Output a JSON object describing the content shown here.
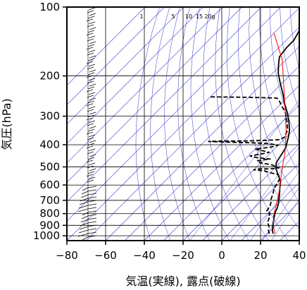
{
  "chart_data": {
    "type": "line",
    "title": "",
    "xlabel": "気温(実線), 露点(破線)",
    "ylabel": "気圧(hPa)",
    "scale": {
      "x": "linear",
      "y": "log"
    },
    "xlim": [
      -80,
      40
    ],
    "ylim": [
      1050,
      100
    ],
    "x_ticks": [
      "−80",
      "−60",
      "−40",
      "−20",
      "0",
      "20",
      "40"
    ],
    "x_tick_values": [
      -80,
      -60,
      -40,
      -20,
      0,
      20,
      40
    ],
    "y_ticks": [
      "100",
      "200",
      "300",
      "400",
      "500",
      "600",
      "700",
      "800",
      "900",
      "1000"
    ],
    "y_tick_values": [
      100,
      200,
      300,
      400,
      500,
      600,
      700,
      800,
      900,
      1000
    ],
    "mixing_ratio_labels": [
      "1",
      "5",
      "10",
      "15",
      "20g"
    ],
    "grid": true,
    "colors": {
      "temperature": "#000000",
      "dewpoint": "#000000",
      "parcel": "#ff0000",
      "background_lines": "#3333cc"
    },
    "series": [
      {
        "kind": "temperature",
        "style": "solid",
        "points": [
          [
            23,
            980
          ],
          [
            21,
            950
          ],
          [
            19,
            910
          ],
          [
            17,
            870
          ],
          [
            15,
            830
          ],
          [
            13,
            790
          ],
          [
            12,
            760
          ],
          [
            10,
            720
          ],
          [
            8,
            690
          ],
          [
            6,
            660
          ],
          [
            3,
            620
          ],
          [
            0,
            580
          ],
          [
            -5,
            540
          ],
          [
            -9,
            510
          ],
          [
            -12,
            480
          ],
          [
            -13,
            455
          ],
          [
            -14,
            430
          ],
          [
            -15,
            410
          ],
          [
            -17,
            390
          ],
          [
            -19,
            370
          ],
          [
            -22,
            345
          ],
          [
            -27,
            315
          ],
          [
            -32,
            290
          ],
          [
            -38,
            265
          ],
          [
            -44,
            240
          ],
          [
            -51,
            215
          ],
          [
            -57,
            195
          ],
          [
            -61,
            180
          ],
          [
            -65,
            165
          ],
          [
            -66,
            150
          ],
          [
            -66,
            140
          ],
          [
            -68,
            128
          ],
          [
            -70,
            120
          ],
          [
            -71,
            113
          ],
          [
            -72,
            106
          ],
          [
            -73,
            100
          ]
        ]
      },
      {
        "kind": "dewpoint",
        "style": "dashed",
        "points": [
          [
            21,
            980
          ],
          [
            19,
            950
          ],
          [
            17,
            910
          ],
          [
            14,
            870
          ],
          [
            13,
            840
          ],
          [
            12,
            830
          ],
          [
            11,
            800
          ],
          [
            8,
            780
          ],
          [
            7,
            740
          ],
          [
            6,
            720
          ],
          [
            4,
            690
          ],
          [
            2,
            650
          ],
          [
            0,
            620
          ],
          [
            -1,
            590
          ],
          [
            -2,
            560
          ],
          [
            -5,
            540
          ],
          [
            -10,
            530
          ],
          [
            -14,
            520
          ],
          [
            -20,
            515
          ],
          [
            -18,
            510
          ],
          [
            -12,
            510
          ],
          [
            -8,
            505
          ],
          [
            -13,
            490
          ],
          [
            -20,
            480
          ],
          [
            -23,
            470
          ],
          [
            -17,
            462
          ],
          [
            -25,
            455
          ],
          [
            -29,
            448
          ],
          [
            -25,
            440
          ],
          [
            -21,
            432
          ],
          [
            -25,
            425
          ],
          [
            -30,
            418
          ],
          [
            -23,
            410
          ],
          [
            -20,
            402
          ],
          [
            -26,
            395
          ],
          [
            -35,
            392
          ],
          [
            -45,
            390
          ],
          [
            -58,
            387
          ],
          [
            -50,
            385
          ],
          [
            -40,
            385
          ],
          [
            -30,
            383
          ],
          [
            -22,
            380
          ],
          [
            -21,
            370
          ],
          [
            -23,
            345
          ],
          [
            -28,
            315
          ],
          [
            -33,
            290
          ],
          [
            -38,
            272
          ],
          [
            -43,
            255
          ],
          [
            -45,
            250
          ],
          [
            -60,
            248
          ],
          [
            -80,
            247
          ]
        ]
      },
      {
        "kind": "parcel",
        "style": "solid",
        "points": [
          [
            24,
            980
          ],
          [
            20,
            920
          ],
          [
            14,
            820
          ],
          [
            9,
            720
          ],
          [
            3,
            620
          ],
          [
            -5,
            520
          ],
          [
            -13,
            430
          ],
          [
            -23,
            350
          ],
          [
            -35,
            280
          ],
          [
            -48,
            220
          ],
          [
            -62,
            170
          ],
          [
            -80,
            130
          ]
        ]
      }
    ]
  }
}
